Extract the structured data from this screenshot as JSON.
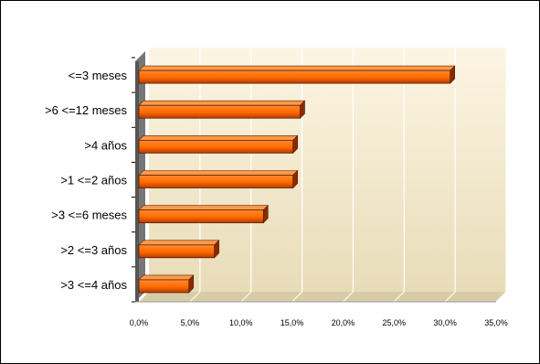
{
  "chart_data": {
    "type": "bar",
    "orientation": "horizontal",
    "title": "",
    "xlabel": "",
    "ylabel": "",
    "categories": [
      "<=3 meses",
      ">6 <=12 meses",
      ">4 años",
      ">1 <=2 años",
      ">3 <=6 meses",
      ">2 <=3 años",
      ">3 <=4 años"
    ],
    "values": [
      30.5,
      15.8,
      15.1,
      15.1,
      12.2,
      7.4,
      4.9
    ],
    "value_unit": "%",
    "xlim": [
      0,
      35
    ],
    "x_ticks": [
      0,
      5,
      10,
      15,
      20,
      25,
      30,
      35
    ],
    "x_tick_labels": [
      "0,0%",
      "5,0%",
      "10,0%",
      "15,0%",
      "20,0%",
      "25,0%",
      "30,0%",
      "35,0%"
    ],
    "grid": true,
    "legend": "none",
    "colors": {
      "bar": "#ff6a00",
      "bar_dark": "#b33c00",
      "bar_top": "#8a2a00",
      "plot_bg_top": "#fdf5e3",
      "plot_bg_bottom": "#e8dcb8",
      "grid": "#ffffff",
      "axis_wall": "#555555"
    }
  }
}
